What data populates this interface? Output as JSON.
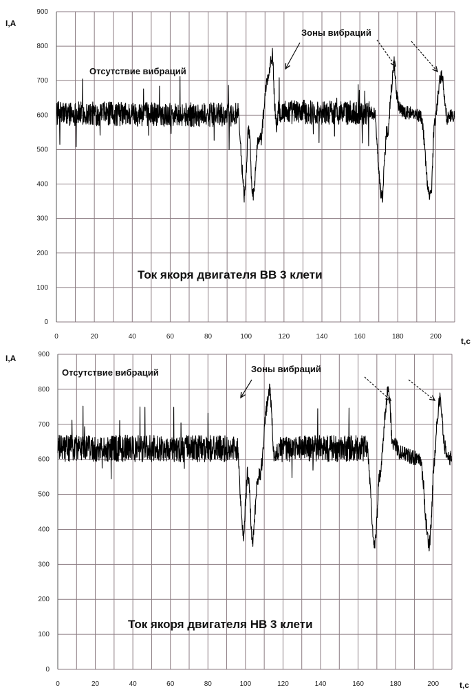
{
  "chart_data": [
    {
      "type": "line",
      "title": "Ток якоря двигателя ВВ 3 клети",
      "ylabel": "I,A",
      "xlabel": "t,c",
      "xlim": [
        0,
        210
      ],
      "ylim": [
        0,
        900
      ],
      "xticks": [
        "0",
        "20",
        "40",
        "60",
        "80",
        "100",
        "120",
        "140",
        "160",
        "180",
        "200"
      ],
      "yticks": [
        "0",
        "100",
        "200",
        "300",
        "400",
        "500",
        "600",
        "700",
        "800",
        "900"
      ],
      "grid": true,
      "annotations": {
        "no_vibration": "Отсутствие вибраций",
        "vibration_zones": "Зоны вибраций"
      },
      "base_level": 600,
      "noise_amplitude": 35,
      "series": [
        {
          "x": [
            0,
            96,
            97,
            98,
            99,
            100,
            101,
            102,
            103,
            104,
            105,
            106,
            107,
            108,
            109,
            110,
            111,
            112,
            113,
            114,
            115,
            116,
            117,
            168,
            169,
            170,
            171,
            172,
            173,
            174,
            175,
            176,
            177,
            178,
            179,
            180,
            181,
            182,
            192,
            193,
            194,
            195,
            196,
            197,
            198,
            199,
            200,
            201,
            202,
            203,
            204,
            205,
            206,
            208,
            210
          ],
          "y": [
            605,
            600,
            520,
            440,
            360,
            420,
            560,
            540,
            380,
            370,
            440,
            520,
            540,
            530,
            590,
            660,
            700,
            720,
            760,
            780,
            640,
            560,
            610,
            605,
            530,
            430,
            380,
            360,
            470,
            550,
            560,
            640,
            700,
            760,
            680,
            640,
            620,
            610,
            600,
            580,
            520,
            440,
            380,
            360,
            400,
            560,
            600,
            640,
            700,
            720,
            690,
            620,
            590,
            600,
            595
          ]
        }
      ]
    },
    {
      "type": "line",
      "title": "Ток якоря двигателя НВ 3 клети",
      "ylabel": "I,A",
      "xlabel": "t,c",
      "xlim": [
        0,
        210
      ],
      "ylim": [
        0,
        900
      ],
      "xticks": [
        "0",
        "20",
        "40",
        "60",
        "80",
        "100",
        "120",
        "140",
        "160",
        "180",
        "200"
      ],
      "yticks": [
        "0",
        "100",
        "200",
        "300",
        "400",
        "500",
        "600",
        "700",
        "800",
        "900"
      ],
      "grid": true,
      "annotations": {
        "no_vibration": "Отсутствие вибраций",
        "vibration_zones": "Зоны вибраций"
      },
      "base_level": 630,
      "noise_amplitude": 38,
      "series": [
        {
          "x": [
            0,
            96,
            97,
            98,
            99,
            100,
            101,
            102,
            103,
            104,
            105,
            106,
            107,
            108,
            109,
            110,
            111,
            112,
            113,
            114,
            115,
            116,
            117,
            165,
            166,
            167,
            168,
            169,
            170,
            171,
            172,
            173,
            174,
            175,
            176,
            177,
            178,
            179,
            180,
            181,
            182,
            192,
            193,
            194,
            195,
            196,
            197,
            198,
            199,
            200,
            201,
            202,
            203,
            204,
            205,
            206,
            208,
            210
          ],
          "y": [
            632,
            630,
            520,
            420,
            380,
            470,
            560,
            540,
            400,
            360,
            440,
            520,
            560,
            560,
            600,
            680,
            740,
            780,
            800,
            720,
            620,
            600,
            630,
            630,
            560,
            460,
            380,
            350,
            420,
            540,
            560,
            620,
            700,
            760,
            810,
            760,
            660,
            640,
            640,
            630,
            620,
            600,
            600,
            570,
            520,
            430,
            380,
            350,
            420,
            560,
            620,
            700,
            760,
            780,
            700,
            640,
            600,
            610
          ]
        }
      ]
    }
  ]
}
